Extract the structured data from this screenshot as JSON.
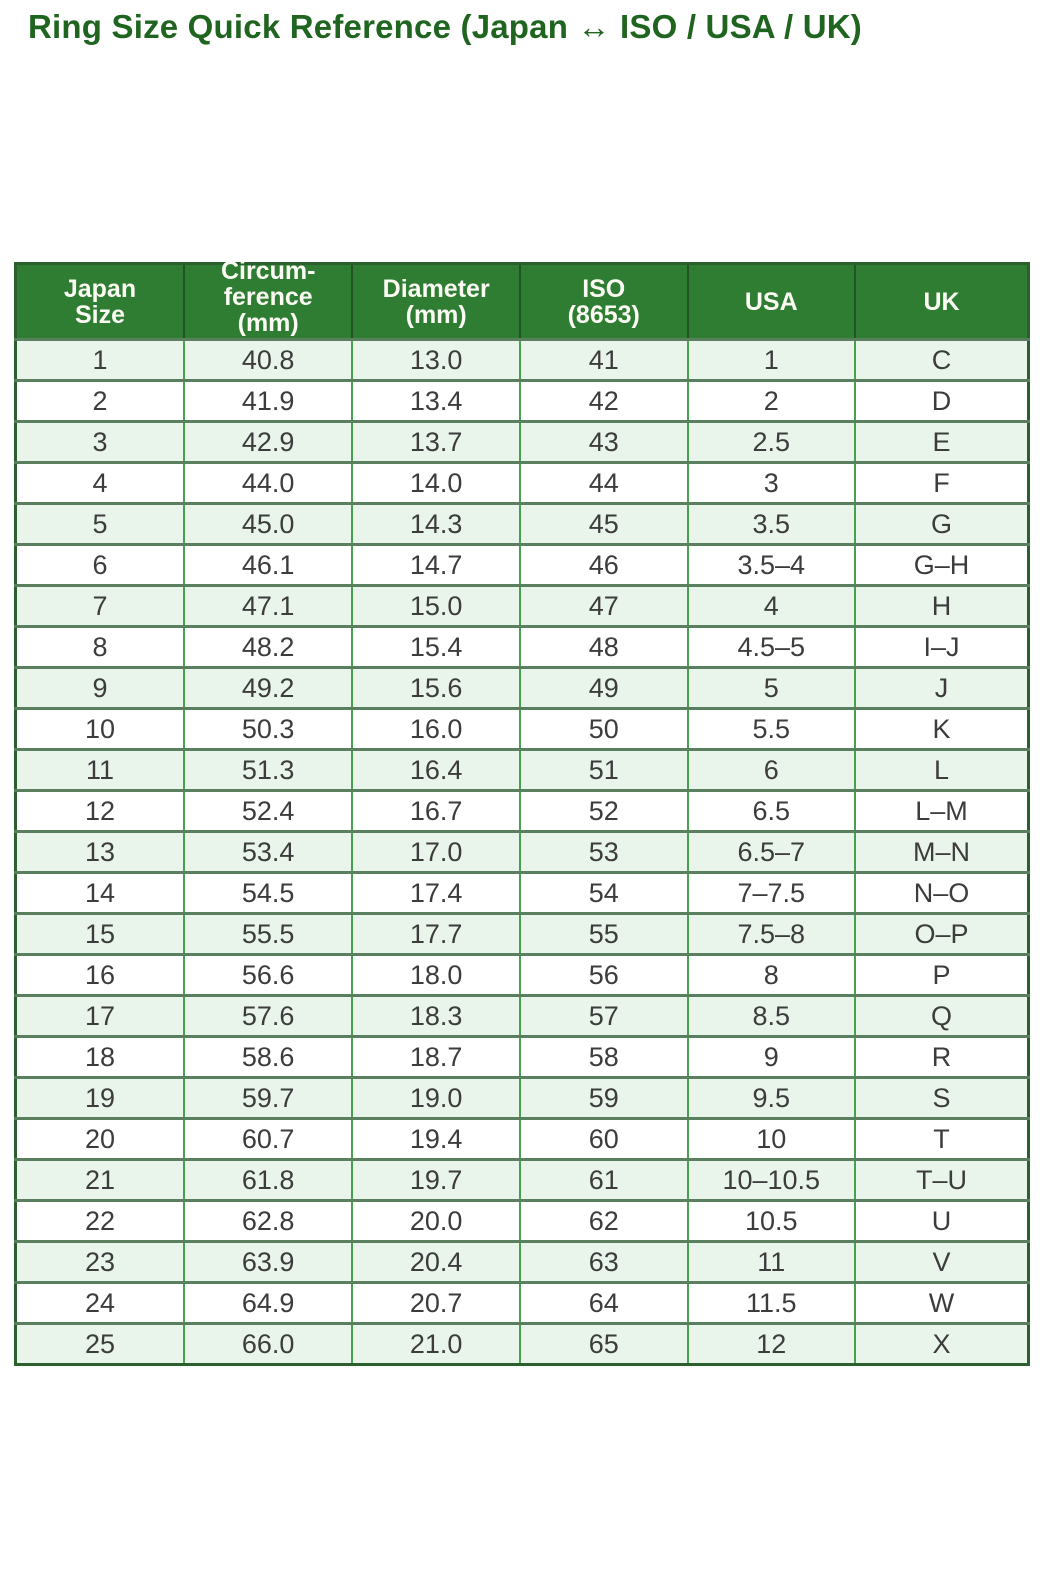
{
  "page": {
    "title": "Ring Size Quick Reference (Japan ↔ ISO / USA / UK)"
  },
  "colors": {
    "title_text": "#1f651f",
    "header_bg": "#2e7d32",
    "header_text": "#fbfbf4",
    "row_stripe": "#e9f5ea",
    "row_plain": "#ffffff",
    "cell_text": "#3c3c3c",
    "border_vertical": "#46a04d",
    "border_horizontal": "#597f5e",
    "outer_border": "#2b5f2e"
  },
  "chart_data": {
    "type": "table",
    "title": "Ring Size Quick Reference (Japan ↔ ISO / USA / UK)",
    "columns": [
      "Japan\nSize",
      "Circum-\nference\n(mm)",
      "Diameter\n(mm)",
      "ISO\n(8653)",
      "USA",
      "UK"
    ],
    "rows": [
      [
        "1",
        "40.8",
        "13.0",
        "41",
        "1",
        "C"
      ],
      [
        "2",
        "41.9",
        "13.4",
        "42",
        "2",
        "D"
      ],
      [
        "3",
        "42.9",
        "13.7",
        "43",
        "2.5",
        "E"
      ],
      [
        "4",
        "44.0",
        "14.0",
        "44",
        "3",
        "F"
      ],
      [
        "5",
        "45.0",
        "14.3",
        "45",
        "3.5",
        "G"
      ],
      [
        "6",
        "46.1",
        "14.7",
        "46",
        "3.5–4",
        "G–H"
      ],
      [
        "7",
        "47.1",
        "15.0",
        "47",
        "4",
        "H"
      ],
      [
        "8",
        "48.2",
        "15.4",
        "48",
        "4.5–5",
        "I–J"
      ],
      [
        "9",
        "49.2",
        "15.6",
        "49",
        "5",
        "J"
      ],
      [
        "10",
        "50.3",
        "16.0",
        "50",
        "5.5",
        "K"
      ],
      [
        "11",
        "51.3",
        "16.4",
        "51",
        "6",
        "L"
      ],
      [
        "12",
        "52.4",
        "16.7",
        "52",
        "6.5",
        "L–M"
      ],
      [
        "13",
        "53.4",
        "17.0",
        "53",
        "6.5–7",
        "M–N"
      ],
      [
        "14",
        "54.5",
        "17.4",
        "54",
        "7–7.5",
        "N–O"
      ],
      [
        "15",
        "55.5",
        "17.7",
        "55",
        "7.5–8",
        "O–P"
      ],
      [
        "16",
        "56.6",
        "18.0",
        "56",
        "8",
        "P"
      ],
      [
        "17",
        "57.6",
        "18.3",
        "57",
        "8.5",
        "Q"
      ],
      [
        "18",
        "58.6",
        "18.7",
        "58",
        "9",
        "R"
      ],
      [
        "19",
        "59.7",
        "19.0",
        "59",
        "9.5",
        "S"
      ],
      [
        "20",
        "60.7",
        "19.4",
        "60",
        "10",
        "T"
      ],
      [
        "21",
        "61.8",
        "19.7",
        "61",
        "10–10.5",
        "T–U"
      ],
      [
        "22",
        "62.8",
        "20.0",
        "62",
        "10.5",
        "U"
      ],
      [
        "23",
        "63.9",
        "20.4",
        "63",
        "11",
        "V"
      ],
      [
        "24",
        "64.9",
        "20.7",
        "64",
        "11.5",
        "W"
      ],
      [
        "25",
        "66.0",
        "21.0",
        "65",
        "12",
        "X"
      ]
    ]
  }
}
